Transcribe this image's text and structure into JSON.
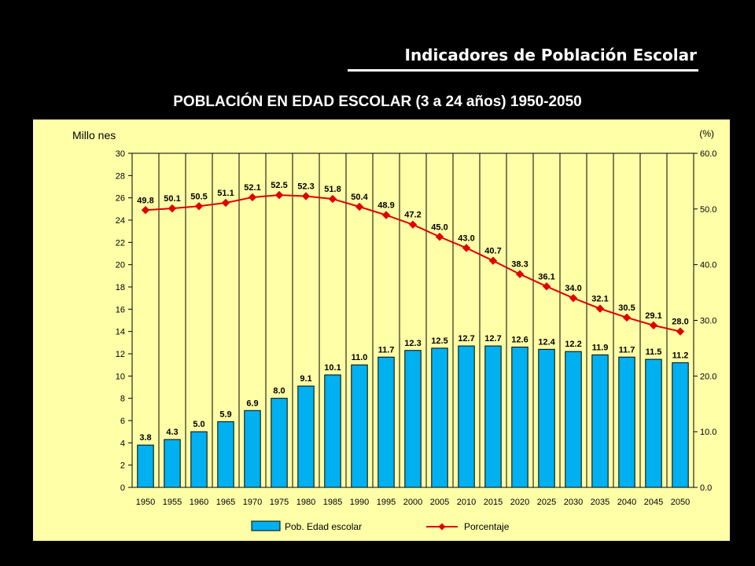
{
  "header": {
    "title": "Indicadores de Población Escolar"
  },
  "main_title": "POBLACIÓN EN EDAD ESCOLAR (3 a 24 años)   1950-2050",
  "colors": {
    "background": "#000000",
    "panel": "#ffffa8",
    "bar": "#00b0f0",
    "line": "#e00000",
    "grid": "#000000"
  },
  "chart_data": {
    "type": "bar",
    "categories": [
      "1950",
      "1955",
      "1960",
      "1965",
      "1970",
      "1975",
      "1980",
      "1985",
      "1990",
      "1995",
      "2000",
      "2005",
      "2010",
      "2015",
      "2020",
      "2025",
      "2030",
      "2035",
      "2040",
      "2045",
      "2050"
    ],
    "ylabel": "Millo nes",
    "y2label": "(%)",
    "ylim": [
      0,
      30
    ],
    "y2lim": [
      0,
      60
    ],
    "yticks": [
      "0",
      "2",
      "4",
      "6",
      "8",
      "10",
      "12",
      "14",
      "16",
      "18",
      "20",
      "22",
      "24",
      "26",
      "28",
      "30"
    ],
    "y2ticks": [
      "0.0",
      "10.0",
      "20.0",
      "30.0",
      "40.0",
      "50.0",
      "60.0"
    ],
    "grid": "vertical lines between categories",
    "legend_position": "bottom",
    "series": [
      {
        "name": "Pob. Edad escolar",
        "kind": "bar",
        "axis": "left",
        "values": [
          3.8,
          4.3,
          5.0,
          5.9,
          6.9,
          8.0,
          9.1,
          10.1,
          11.0,
          11.7,
          12.3,
          12.5,
          12.7,
          12.7,
          12.6,
          12.4,
          12.2,
          11.9,
          11.7,
          11.5,
          11.2
        ],
        "labels": [
          "3.8",
          "4.3",
          "5.0",
          "5.9",
          "6.9",
          "8.0",
          "9.1",
          "10.1",
          "11.0",
          "11.7",
          "12.3",
          "12.5",
          "12.7",
          "12.7",
          "12.6",
          "12.4",
          "12.2",
          "11.9",
          "11.7",
          "11.5",
          "11.2"
        ]
      },
      {
        "name": "Porcentaje",
        "kind": "line",
        "axis": "right",
        "values": [
          49.8,
          50.1,
          50.5,
          51.1,
          52.1,
          52.5,
          52.3,
          51.8,
          50.4,
          48.9,
          47.2,
          45.0,
          43.0,
          40.7,
          38.3,
          36.1,
          34.0,
          32.1,
          30.5,
          29.1,
          28.0
        ],
        "labels": [
          "49.8",
          "50.1",
          "50.5",
          "51.1",
          "52.1",
          "52.5",
          "52.3",
          "51.8",
          "50.4",
          "48.9",
          "47.2",
          "45.0",
          "43.0",
          "40.7",
          "38.3",
          "36.1",
          "34.0",
          "32.1",
          "30.5",
          "29.1",
          "28.0"
        ]
      }
    ]
  }
}
